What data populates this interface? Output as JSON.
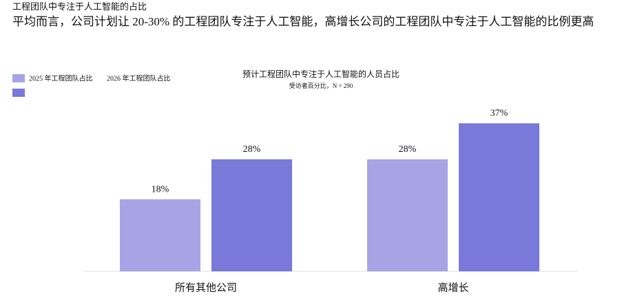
{
  "header": {
    "kicker": "工程团队中专注于人工智能的占比",
    "headline": "平均而言，公司计划让 20-30% 的工程团队专注于人工智能，高增长公司的工程团队中专注于人工智能的比例更高"
  },
  "chart_data": {
    "type": "bar",
    "title": "预计工程团队中专注于人工智能的人员占比",
    "subtitle": "受访者百分比，N = 290",
    "categories": [
      "所有其他公司",
      "高增长"
    ],
    "series": [
      {
        "name": "2025 年工程团队占比",
        "color": "#a6a4e5",
        "values": [
          18,
          28
        ],
        "value_labels": [
          "18%",
          "28%"
        ]
      },
      {
        "name": "2026 年工程团队占比",
        "color": "#7879d9",
        "values": [
          28,
          37
        ],
        "value_labels": [
          "28%",
          "37%"
        ]
      }
    ],
    "ylim": [
      0,
      40
    ]
  }
}
